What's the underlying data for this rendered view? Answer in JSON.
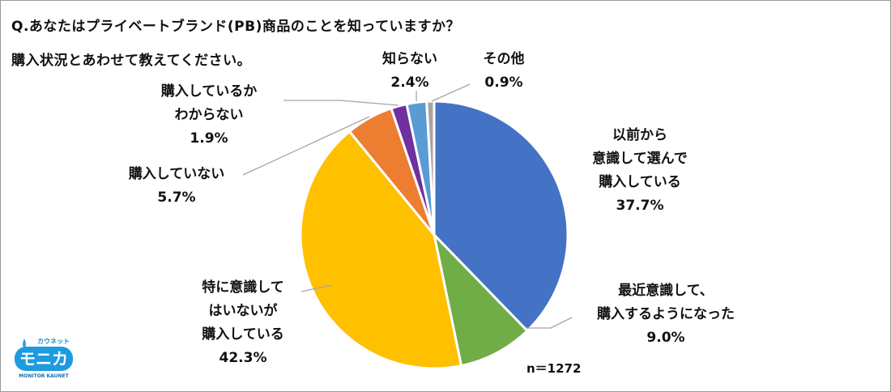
{
  "title_line1": "Q.あなたはプライベートブランド(PB)商品のことを知っていますか？",
  "title_line2": "購入状況とあわせて教えてください。",
  "sample_size": "n＝1272",
  "logo": {
    "top_text": "カウネット",
    "main_text": "モニカ",
    "sub_text": "MONITOR KAUNET"
  },
  "colors": {
    "blue": "#4472C4",
    "green": "#70AD47",
    "yellow": "#FFC000",
    "orange": "#ED7D31",
    "purple": "#7030A0",
    "lightblue": "#5B9BD5",
    "gray": "#A5A5A5"
  },
  "chart_data": {
    "type": "pie",
    "start": "top, clockwise",
    "slices": [
      {
        "label": [
          "以前から",
          "意識して選んで",
          "購入している"
        ],
        "value": 37.7,
        "display": "37.7%",
        "color": "#4472C4"
      },
      {
        "label": [
          "最近意識して、",
          "購入するようになった"
        ],
        "value": 9.0,
        "display": "9.0%",
        "color": "#70AD47"
      },
      {
        "label": [
          "特に意識して",
          "はいないが",
          "購入している"
        ],
        "value": 42.3,
        "display": "42.3%",
        "color": "#FFC000"
      },
      {
        "label": [
          "購入していない"
        ],
        "value": 5.7,
        "display": "5.7%",
        "color": "#ED7D31"
      },
      {
        "label": [
          "購入しているか",
          "わからない"
        ],
        "value": 1.9,
        "display": "1.9%",
        "color": "#7030A0"
      },
      {
        "label": [
          "知らない"
        ],
        "value": 2.4,
        "display": "2.4%",
        "color": "#5B9BD5"
      },
      {
        "label": [
          "その他"
        ],
        "value": 0.9,
        "display": "0.9%",
        "color": "#A5A5A5"
      }
    ]
  }
}
